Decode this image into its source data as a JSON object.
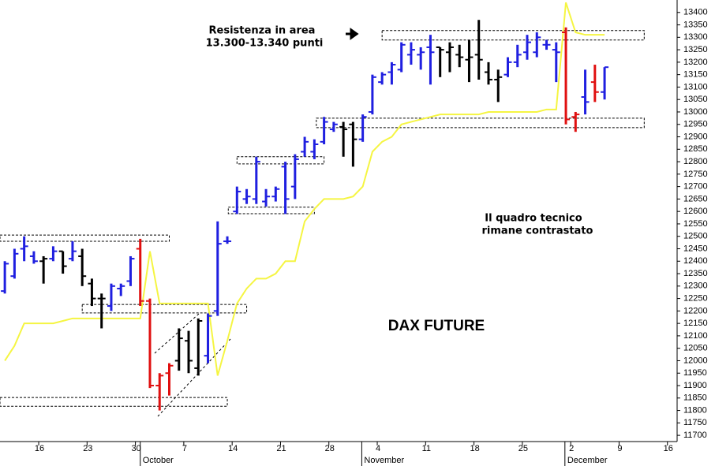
{
  "chart_data": {
    "type": "ohlc",
    "title": "DAX FUTURE",
    "annotations": [
      "Resistenza in area",
      "13.300-13.340 punti",
      "Il quadro tecnico",
      "rimane contrastato"
    ],
    "x": [
      1,
      2,
      3,
      4,
      5,
      6,
      7,
      8,
      9,
      10,
      11,
      12,
      13,
      14,
      15,
      16,
      17,
      18,
      19,
      20,
      21,
      22,
      23,
      24,
      25,
      26,
      27,
      28,
      29,
      30,
      31,
      32,
      33,
      34,
      35,
      36,
      37,
      38,
      39,
      40,
      41,
      42,
      43,
      44,
      45,
      46,
      47,
      48,
      49,
      50,
      51,
      52,
      53,
      54,
      55,
      56,
      57,
      58,
      59,
      60,
      61,
      62,
      63
    ],
    "open": [
      12280,
      12340,
      12450,
      12420,
      12400,
      12410,
      12440,
      12410,
      12420,
      12310,
      12250,
      12220,
      12290,
      12320,
      12450,
      12240,
      11900,
      11950,
      12000,
      12080,
      11970,
      12020,
      12200,
      12480,
      12600,
      12650,
      12650,
      12640,
      12660,
      12780,
      12700,
      12840,
      12840,
      12880,
      12930,
      12940,
      12950,
      12890,
      13000,
      13120,
      13160,
      13170,
      13230,
      13230,
      13260,
      13260,
      13240,
      13230,
      13210,
      13230,
      13160,
      13130,
      13150,
      13200,
      13240,
      13240,
      13270,
      13250,
      13320,
      12980,
      13060,
      13120,
      13080
    ],
    "high": [
      12400,
      12450,
      12500,
      12440,
      12420,
      12460,
      12440,
      12480,
      12450,
      12330,
      12270,
      12310,
      12310,
      12420,
      12490,
      12250,
      11950,
      11990,
      12130,
      12120,
      12170,
      12190,
      12560,
      12500,
      12700,
      12690,
      12820,
      12690,
      12700,
      12800,
      12830,
      12900,
      12890,
      12980,
      12960,
      12960,
      12960,
      12990,
      13150,
      13160,
      13200,
      13280,
      13280,
      13260,
      13310,
      13260,
      13280,
      13270,
      13290,
      13370,
      13200,
      13170,
      13220,
      13270,
      13310,
      13320,
      13290,
      13280,
      13340,
      13000,
      13170,
      13190,
      13180
    ],
    "low": [
      12270,
      12330,
      12400,
      12390,
      12310,
      12400,
      12350,
      12400,
      12300,
      12220,
      12130,
      12200,
      12260,
      12300,
      12220,
      11890,
      11800,
      11860,
      11960,
      11950,
      11940,
      11990,
      12180,
      12470,
      12590,
      12630,
      12630,
      12620,
      12640,
      12590,
      12650,
      12820,
      12810,
      12870,
      12920,
      12820,
      12780,
      12880,
      12990,
      13110,
      13110,
      13160,
      13190,
      13170,
      13110,
      13140,
      13160,
      13180,
      13120,
      13130,
      13110,
      13040,
      13140,
      13180,
      13210,
      13220,
      13250,
      13120,
      12950,
      12920,
      12990,
      13040,
      13050
    ],
    "close": [
      12390,
      12430,
      12460,
      12400,
      12410,
      12440,
      12380,
      12440,
      12340,
      12250,
      12250,
      12300,
      12300,
      12410,
      12240,
      11900,
      11940,
      11980,
      12090,
      12000,
      12160,
      12180,
      12470,
      12480,
      12680,
      12660,
      12800,
      12660,
      12690,
      12650,
      12810,
      12880,
      12870,
      12960,
      12950,
      12930,
      12890,
      12980,
      13140,
      13150,
      13190,
      13270,
      13250,
      13240,
      13240,
      13250,
      13260,
      13220,
      13220,
      13210,
      13130,
      13140,
      13200,
      13230,
      13280,
      13300,
      13270,
      13240,
      12970,
      12990,
      13040,
      13080,
      13180
    ],
    "bar_colors": [
      "#1f1fe0",
      "#1f1fe0",
      "#1f1fe0",
      "#1f1fe0",
      "#000000",
      "#1f1fe0",
      "#000000",
      "#1f1fe0",
      "#000000",
      "#000000",
      "#000000",
      "#1f1fe0",
      "#1f1fe0",
      "#1f1fe0",
      "#e01010",
      "#e01010",
      "#e01010",
      "#e01010",
      "#000000",
      "#000000",
      "#000000",
      "#1f1fe0",
      "#1f1fe0",
      "#1f1fe0",
      "#1f1fe0",
      "#1f1fe0",
      "#1f1fe0",
      "#1f1fe0",
      "#1f1fe0",
      "#1f1fe0",
      "#1f1fe0",
      "#1f1fe0",
      "#1f1fe0",
      "#1f1fe0",
      "#1f1fe0",
      "#000000",
      "#000000",
      "#1f1fe0",
      "#1f1fe0",
      "#1f1fe0",
      "#1f1fe0",
      "#1f1fe0",
      "#1f1fe0",
      "#1f1fe0",
      "#1f1fe0",
      "#000000",
      "#000000",
      "#000000",
      "#000000",
      "#000000",
      "#000000",
      "#000000",
      "#1f1fe0",
      "#1f1fe0",
      "#1f1fe0",
      "#1f1fe0",
      "#1f1fe0",
      "#1f1fe0",
      "#e01010",
      "#e01010",
      "#1f1fe0",
      "#e01010",
      "#1f1fe0"
    ],
    "line": {
      "color": "#f5f542",
      "values": [
        12000,
        12060,
        12150,
        12150,
        12150,
        12150,
        12160,
        12170,
        12170,
        12170,
        12170,
        12170,
        12170,
        12170,
        12170,
        12440,
        12230,
        12230,
        12230,
        12230,
        12230,
        12230,
        11940,
        12080,
        12230,
        12290,
        12330,
        12330,
        12350,
        12400,
        12400,
        12560,
        12610,
        12650,
        12650,
        12650,
        12660,
        12700,
        12840,
        12880,
        12900,
        12950,
        12960,
        12970,
        12980,
        12990,
        12990,
        12990,
        12990,
        12990,
        13000,
        13000,
        13000,
        13000,
        13000,
        13000,
        13010,
        13010,
        13440,
        13320,
        13310,
        13310,
        13310
      ]
    },
    "zones": [
      {
        "x0": 0.5,
        "x1": 18,
        "y0": 12480,
        "y1": 12505
      },
      {
        "x0": 9,
        "x1": 26,
        "y0": 12192,
        "y1": 12226
      },
      {
        "x0": 0.5,
        "x1": 24,
        "y0": 11817,
        "y1": 11852
      },
      {
        "x0": 24.1,
        "x1": 33,
        "y0": 12591,
        "y1": 12617
      },
      {
        "x0": 25,
        "x1": 34,
        "y0": 12791,
        "y1": 12820
      },
      {
        "x0": 33.2,
        "x1": 67.1,
        "y0": 12937,
        "y1": 12975
      },
      {
        "x0": 40,
        "x1": 67.1,
        "y0": 13289,
        "y1": 13327
      }
    ],
    "xlim": [
      0.5,
      70.5
    ],
    "ylim": [
      11675,
      13450
    ],
    "xticks": [
      {
        "value": 4.5,
        "label": "16"
      },
      {
        "value": 9.5,
        "label": "23"
      },
      {
        "value": 14.5,
        "label": "30"
      },
      {
        "value": 19.5,
        "label": "7"
      },
      {
        "value": 24.5,
        "label": "14"
      },
      {
        "value": 29.5,
        "label": "21"
      },
      {
        "value": 34.5,
        "label": "28"
      },
      {
        "value": 39.5,
        "label": "4"
      },
      {
        "value": 44.5,
        "label": "11"
      },
      {
        "value": 49.5,
        "label": "18"
      },
      {
        "value": 54.5,
        "label": "25"
      },
      {
        "value": 59.5,
        "label": "2"
      },
      {
        "value": 64.5,
        "label": "9"
      },
      {
        "value": 69.5,
        "label": "16"
      }
    ],
    "months": [
      {
        "label": "October",
        "x": 15
      },
      {
        "label": "November",
        "x": 37.9
      },
      {
        "label": "December",
        "x": 58.9
      }
    ],
    "yticks": [
      11700,
      11750,
      11800,
      11850,
      11900,
      11950,
      12000,
      12050,
      12100,
      12150,
      12200,
      12250,
      12300,
      12350,
      12400,
      12450,
      12500,
      12550,
      12600,
      12650,
      12700,
      12750,
      12800,
      12850,
      12900,
      12950,
      13000,
      13050,
      13100,
      13150,
      13200,
      13250,
      13300,
      13350,
      13400
    ]
  }
}
